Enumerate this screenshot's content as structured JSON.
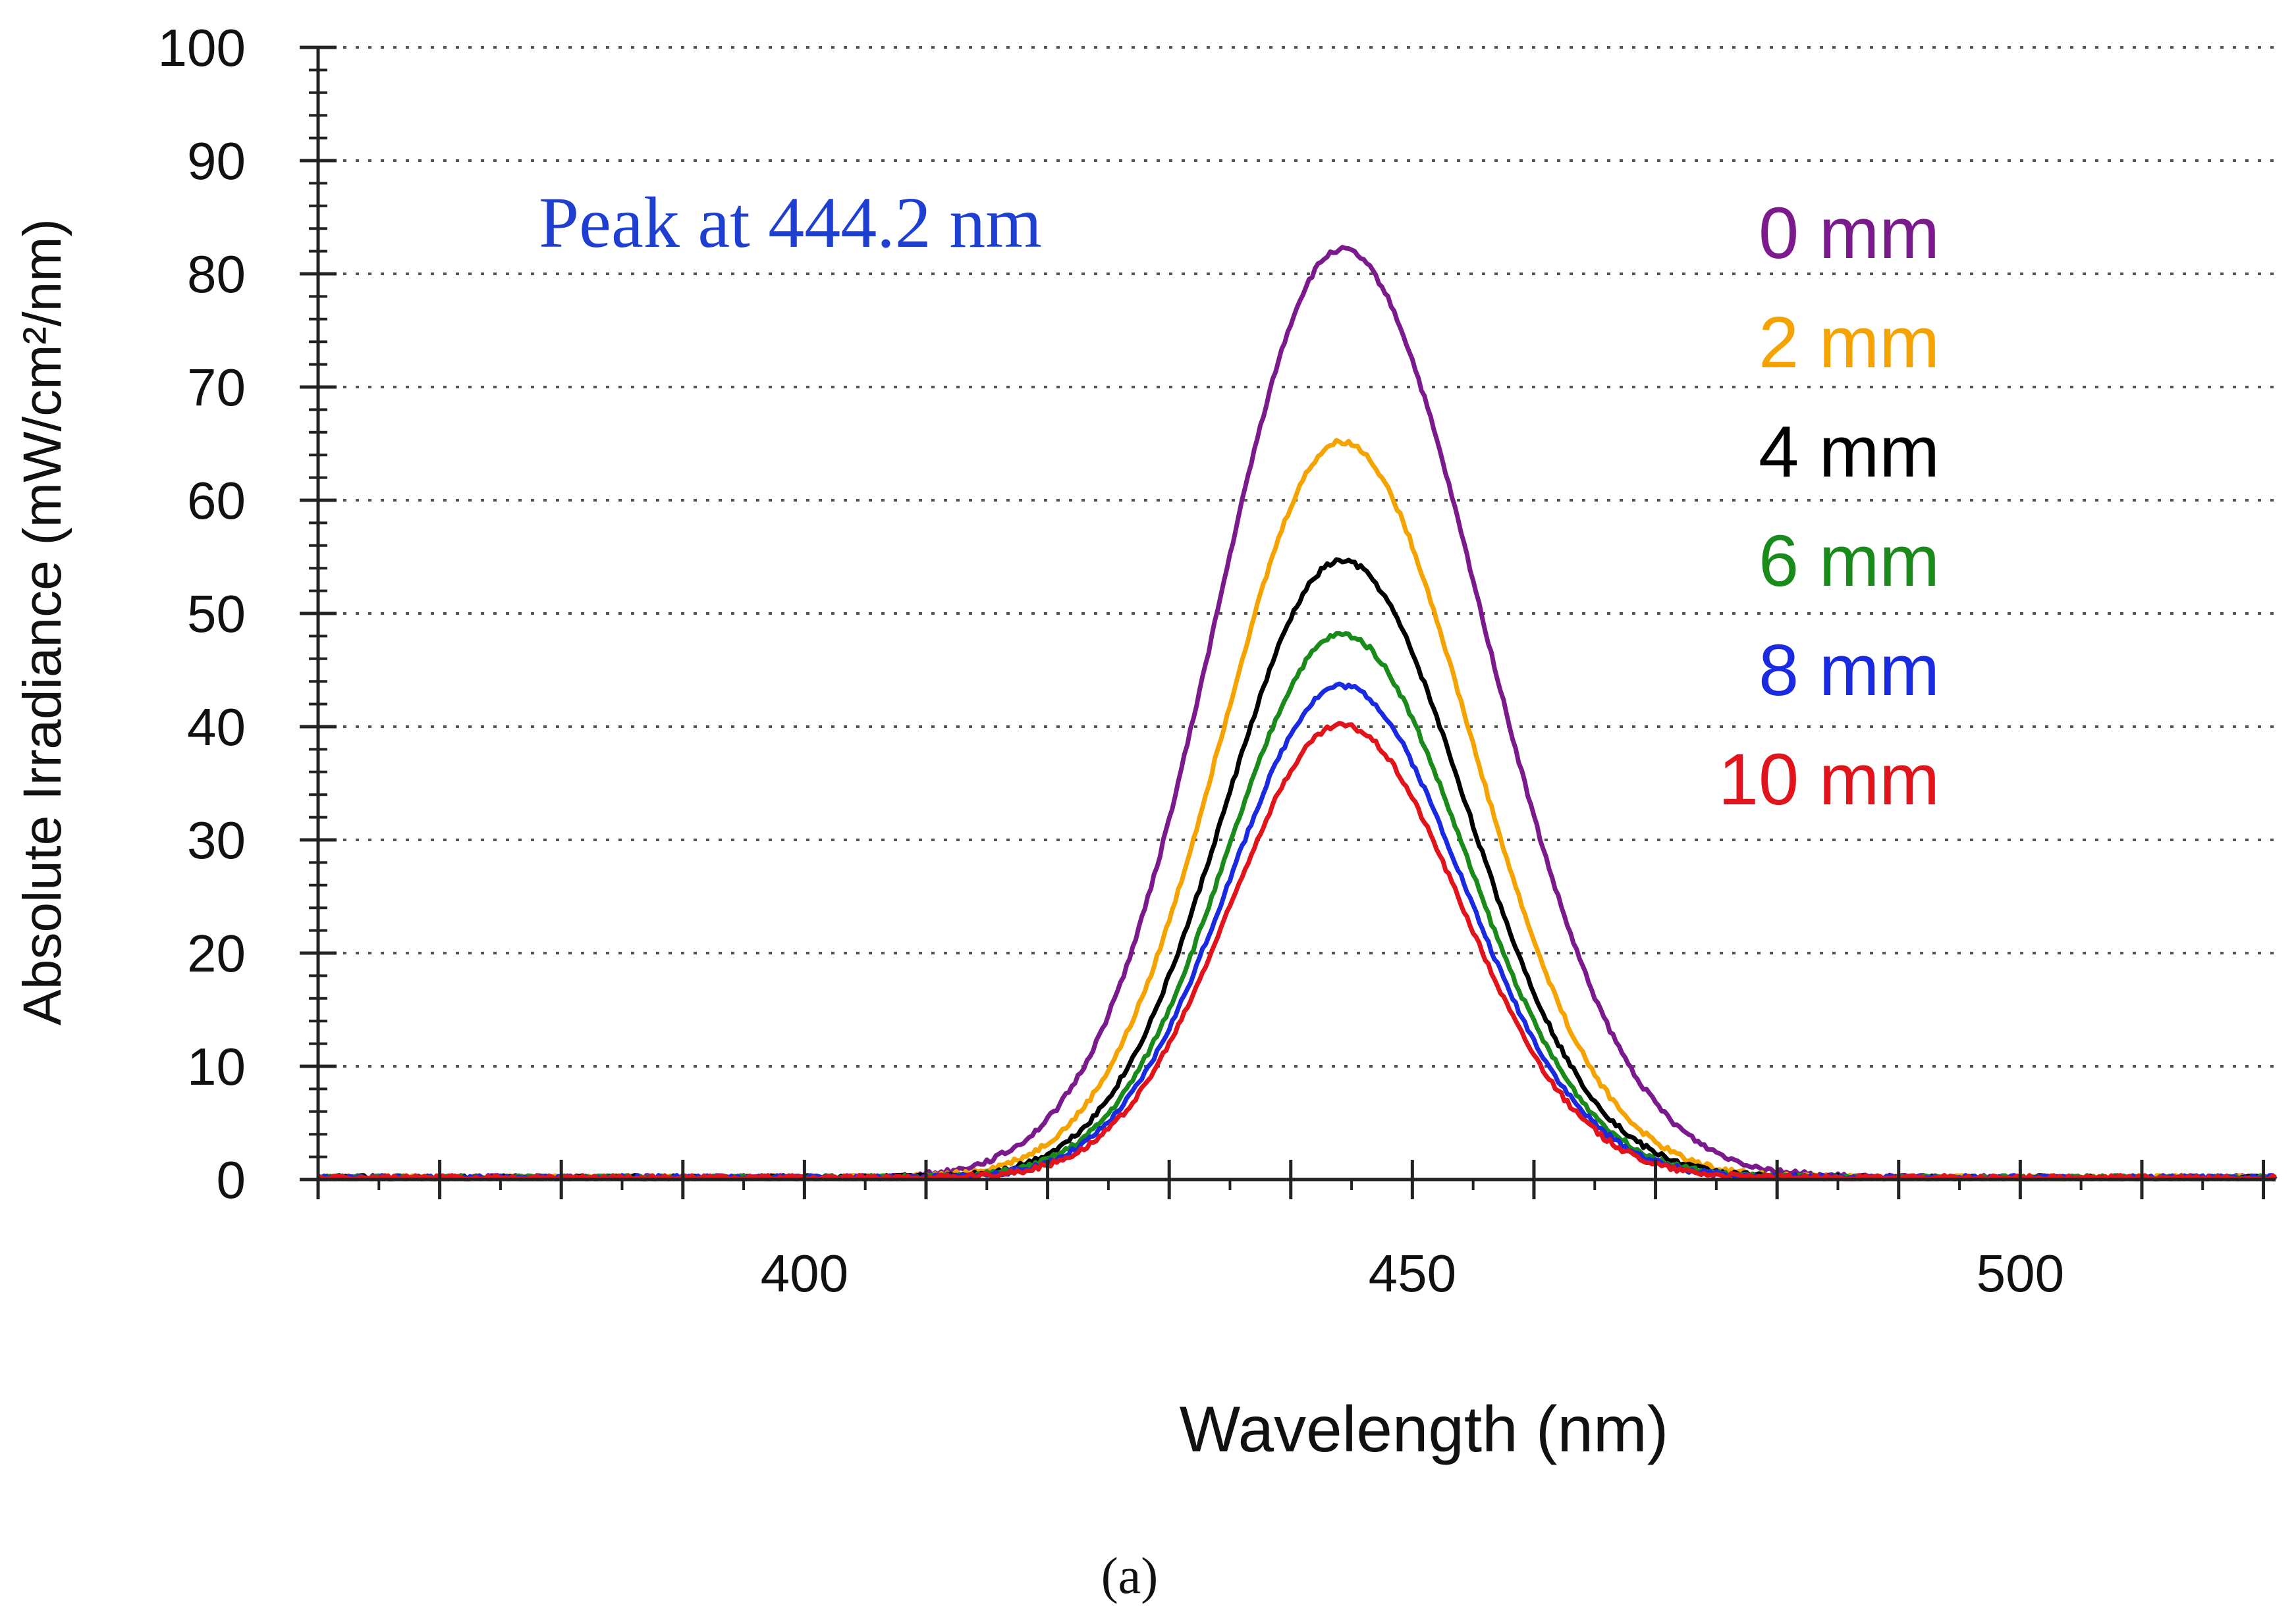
{
  "chart_data": {
    "type": "line",
    "title": "",
    "xlabel": "Wavelength (nm)",
    "ylabel": "Absolute Irradiance (mW/cm²/nm)",
    "xlim": [
      360,
      521
    ],
    "ylim": [
      0,
      100
    ],
    "x_ticks": [
      400,
      450,
      500
    ],
    "y_ticks": [
      0,
      10,
      20,
      30,
      40,
      50,
      60,
      70,
      80,
      90,
      100
    ],
    "grid": "horizontal dotted",
    "annotation": {
      "text": "Peak at 444.2 nm",
      "color": "#1f3fd0"
    },
    "peak_wavelength": 444.2,
    "caption": "(a)",
    "legend_position": "right",
    "series": [
      {
        "name": "0 mm",
        "color": "#7b1a8c",
        "peak": 82.0,
        "sigma_left": 10.3,
        "sigma_right": 11.5
      },
      {
        "name": "2 mm",
        "color": "#f5a300",
        "peak": 65.0,
        "sigma_left": 9.8,
        "sigma_right": 10.5
      },
      {
        "name": "4 mm",
        "color": "#000000",
        "peak": 54.5,
        "sigma_left": 9.5,
        "sigma_right": 10.2
      },
      {
        "name": "6 mm",
        "color": "#1a8a1a",
        "peak": 48.0,
        "sigma_left": 9.3,
        "sigma_right": 10.0
      },
      {
        "name": "8 mm",
        "color": "#1a2ae0",
        "peak": 43.5,
        "sigma_left": 9.2,
        "sigma_right": 9.9
      },
      {
        "name": "10 mm",
        "color": "#e0141a",
        "peak": 40.0,
        "sigma_left": 9.1,
        "sigma_right": 9.8
      }
    ]
  }
}
